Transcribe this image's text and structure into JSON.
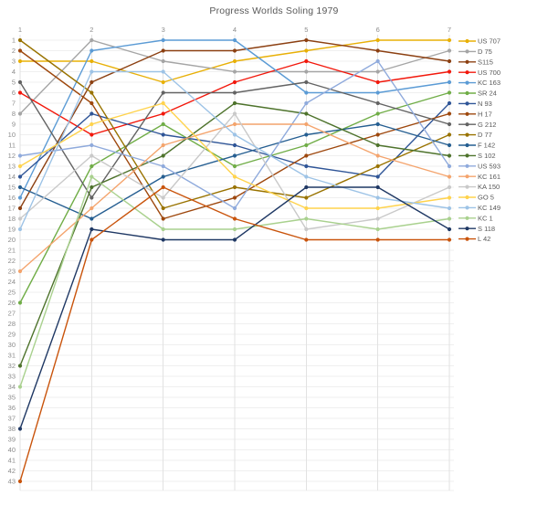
{
  "chart_data": {
    "type": "line",
    "variant": "bump_chart_rank_progression",
    "title": "Progress Worlds Soling 1979",
    "xlabel": "",
    "ylabel": "",
    "x_ticks": [
      "1",
      "2",
      "3",
      "4",
      "5",
      "6",
      "7"
    ],
    "x_axis_position": "top",
    "y_axis": {
      "min": 1,
      "max": 43,
      "step": 1,
      "inverted": true,
      "meaning": "race placing / standing"
    },
    "grid": true,
    "legend_position": "right",
    "series": [
      {
        "name": "US 707",
        "color": "#E8B007",
        "values": [
          3,
          3,
          5,
          3,
          2,
          1,
          1
        ]
      },
      {
        "name": "D 75",
        "color": "#A5A5A5",
        "values": [
          8,
          1,
          3,
          4,
          4,
          4,
          2
        ]
      },
      {
        "name": "S115",
        "color": "#8C4012",
        "values": [
          17,
          5,
          2,
          2,
          1,
          2,
          3
        ]
      },
      {
        "name": "US 700",
        "color": "#F2180C",
        "values": [
          6,
          10,
          8,
          5,
          3,
          5,
          4
        ]
      },
      {
        "name": "KC 163",
        "color": "#5B9BD5",
        "values": [
          16,
          2,
          1,
          1,
          6,
          6,
          5
        ]
      },
      {
        "name": "SR 24",
        "color": "#70AD47",
        "values": [
          26,
          13,
          9,
          13,
          11,
          8,
          6
        ]
      },
      {
        "name": "N 93",
        "color": "#2F5597",
        "values": [
          14,
          8,
          10,
          11,
          13,
          14,
          7
        ]
      },
      {
        "name": "H 17",
        "color": "#9E480E",
        "values": [
          2,
          7,
          18,
          16,
          12,
          10,
          8
        ]
      },
      {
        "name": "G 212",
        "color": "#636363",
        "values": [
          5,
          16,
          6,
          6,
          5,
          7,
          9
        ]
      },
      {
        "name": "D 77",
        "color": "#997300",
        "values": [
          1,
          6,
          17,
          15,
          16,
          13,
          10
        ]
      },
      {
        "name": "F 142",
        "color": "#255E91",
        "values": [
          15,
          18,
          14,
          12,
          10,
          9,
          11
        ]
      },
      {
        "name": "S 102",
        "color": "#4E732C",
        "values": [
          32,
          15,
          12,
          7,
          8,
          11,
          12
        ]
      },
      {
        "name": "US 593",
        "color": "#8FAADC",
        "values": [
          12,
          11,
          13,
          17,
          7,
          3,
          13
        ]
      },
      {
        "name": "KC 161",
        "color": "#F4A46D",
        "values": [
          23,
          17,
          11,
          9,
          9,
          12,
          14
        ]
      },
      {
        "name": "KA 150",
        "color": "#C9C9C9",
        "values": [
          18,
          12,
          16,
          8,
          19,
          18,
          15
        ]
      },
      {
        "name": "GO 5",
        "color": "#FFD34D",
        "values": [
          13,
          9,
          7,
          14,
          17,
          17,
          16
        ]
      },
      {
        "name": "KC 149",
        "color": "#9DC3E6",
        "values": [
          19,
          4,
          4,
          10,
          14,
          16,
          17
        ]
      },
      {
        "name": "KC 1",
        "color": "#A9D18E",
        "values": [
          34,
          14,
          19,
          19,
          18,
          19,
          18
        ]
      },
      {
        "name": "S 118",
        "color": "#1F3864",
        "values": [
          38,
          19,
          20,
          20,
          15,
          15,
          19
        ]
      },
      {
        "name": "L 42",
        "color": "#C9540C",
        "values": [
          43,
          20,
          15,
          18,
          20,
          20,
          20
        ]
      }
    ]
  },
  "style_colors": {
    "background": "#FFFFFF",
    "grid_horizontal": "#EFEFEF",
    "grid_vertical": "#E2E2E2",
    "axis_text": "#8C8C8C",
    "title_text": "#595959",
    "legend_text": "#595959"
  }
}
